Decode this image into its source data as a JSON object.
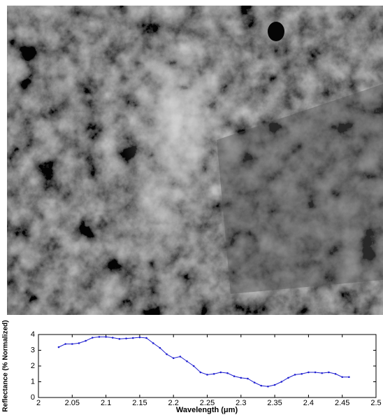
{
  "chart_data": {
    "type": "line",
    "xlabel": "Wavelength (μm)",
    "ylabel": "Reflectance (% Normalized)",
    "x": [
      2.03,
      2.04,
      2.05,
      2.06,
      2.07,
      2.08,
      2.09,
      2.1,
      2.11,
      2.12,
      2.13,
      2.14,
      2.15,
      2.16,
      2.17,
      2.18,
      2.19,
      2.2,
      2.21,
      2.22,
      2.23,
      2.24,
      2.25,
      2.26,
      2.27,
      2.28,
      2.29,
      2.3,
      2.31,
      2.32,
      2.33,
      2.34,
      2.35,
      2.36,
      2.37,
      2.38,
      2.39,
      2.4,
      2.41,
      2.42,
      2.43,
      2.44,
      2.45,
      2.46
    ],
    "series": [
      {
        "color": "#1f1fd0",
        "values": [
          3.2,
          3.4,
          3.4,
          3.45,
          3.6,
          3.8,
          3.85,
          3.85,
          3.8,
          3.72,
          3.75,
          3.78,
          3.82,
          3.78,
          3.45,
          3.15,
          2.75,
          2.5,
          2.6,
          2.3,
          2.0,
          1.6,
          1.45,
          1.5,
          1.6,
          1.55,
          1.35,
          1.25,
          1.2,
          0.95,
          0.75,
          0.7,
          0.8,
          1.0,
          1.25,
          1.45,
          1.5,
          1.6,
          1.6,
          1.55,
          1.6,
          1.5,
          1.3,
          1.3
        ]
      }
    ],
    "xlim": [
      2,
      2.5
    ],
    "xticks": [
      2,
      2.05,
      2.1,
      2.15,
      2.2,
      2.25,
      2.3,
      2.35,
      2.4,
      2.45,
      2.5
    ],
    "ylim": [
      0,
      4
    ],
    "yticks": [
      0,
      1,
      2,
      3,
      4
    ]
  }
}
